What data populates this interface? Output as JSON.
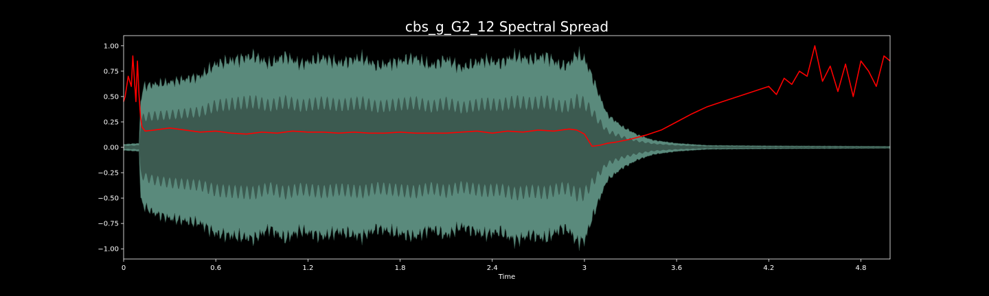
{
  "chart_data": {
    "type": "line",
    "title": "cbs_g_G2_12 Spectral Spread",
    "xlabel": "Time",
    "ylabel": "",
    "xlim": [
      0,
      4.99
    ],
    "ylim": [
      -1.1,
      1.1
    ],
    "x_ticks": [
      0,
      0.6,
      1.2,
      1.8,
      2.4,
      3.0,
      3.6,
      4.2,
      4.8
    ],
    "x_tick_labels": [
      "0",
      "0.6",
      "1.2",
      "1.8",
      "2.4",
      "3",
      "3.6",
      "4.2",
      "4.8"
    ],
    "y_ticks": [
      1.0,
      0.75,
      0.5,
      0.25,
      0.0,
      -0.25,
      -0.5,
      -0.75,
      -1.0
    ],
    "y_tick_labels": [
      "1.00",
      "0.75",
      "0.50",
      "0.25",
      "0.00",
      "−0.25",
      "−0.50",
      "−0.75",
      "−1.00"
    ],
    "grid": false,
    "background": "#000000",
    "colors": {
      "waveform_fill": "#3c5a50",
      "waveform_peak": "#5a8a7c",
      "waveform_edge": "#2e4a40",
      "spread_line": "#ff0000",
      "axes_text": "#ffffff"
    },
    "series": [
      {
        "kind": "waveform-envelope",
        "x": [
          0,
          0.1,
          0.11,
          0.13,
          0.2,
          0.3,
          0.5,
          0.6,
          0.75,
          0.85,
          0.95,
          1.05,
          1.15,
          1.3,
          1.4,
          1.55,
          1.65,
          1.8,
          1.9,
          2.0,
          2.1,
          2.2,
          2.35,
          2.45,
          2.55,
          2.65,
          2.75,
          2.85,
          2.9,
          2.95,
          3.0,
          3.05,
          3.1,
          3.15,
          3.25,
          3.35,
          3.45,
          3.6,
          3.8,
          4.2,
          4.99
        ],
        "upper": [
          0.03,
          0.04,
          0.45,
          0.6,
          0.62,
          0.64,
          0.7,
          0.82,
          0.87,
          0.9,
          0.82,
          0.9,
          0.82,
          0.88,
          0.83,
          0.88,
          0.8,
          0.85,
          0.88,
          0.8,
          0.87,
          0.78,
          0.86,
          0.83,
          0.9,
          0.86,
          0.9,
          0.8,
          0.82,
          0.92,
          0.87,
          0.7,
          0.5,
          0.32,
          0.2,
          0.12,
          0.07,
          0.04,
          0.02,
          0.015,
          0.01
        ],
        "lower": [
          -0.03,
          -0.04,
          -0.5,
          -0.58,
          -0.65,
          -0.7,
          -0.75,
          -0.85,
          -0.88,
          -0.9,
          -0.8,
          -0.9,
          -0.82,
          -0.88,
          -0.83,
          -0.88,
          -0.8,
          -0.85,
          -0.88,
          -0.8,
          -0.87,
          -0.78,
          -0.86,
          -0.83,
          -0.92,
          -0.86,
          -0.9,
          -0.8,
          -0.82,
          -0.93,
          -0.92,
          -0.7,
          -0.5,
          -0.32,
          -0.2,
          -0.12,
          -0.07,
          -0.04,
          -0.02,
          -0.015,
          -0.01
        ]
      },
      {
        "kind": "line",
        "x": [
          0,
          0.01,
          0.03,
          0.05,
          0.06,
          0.08,
          0.09,
          0.1,
          0.11,
          0.12,
          0.14,
          0.2,
          0.3,
          0.4,
          0.5,
          0.6,
          0.7,
          0.8,
          0.9,
          1.0,
          1.1,
          1.2,
          1.3,
          1.4,
          1.5,
          1.6,
          1.7,
          1.8,
          1.9,
          2.0,
          2.1,
          2.2,
          2.3,
          2.4,
          2.5,
          2.6,
          2.7,
          2.8,
          2.9,
          2.95,
          3.0,
          3.05,
          3.1,
          3.15,
          3.2,
          3.3,
          3.4,
          3.5,
          3.6,
          3.7,
          3.8,
          3.9,
          4.0,
          4.1,
          4.2,
          4.25,
          4.3,
          4.35,
          4.4,
          4.45,
          4.5,
          4.55,
          4.6,
          4.65,
          4.7,
          4.75,
          4.8,
          4.85,
          4.9,
          4.95,
          4.99
        ],
        "y": [
          0.45,
          0.5,
          0.7,
          0.6,
          0.9,
          0.45,
          0.85,
          0.52,
          0.3,
          0.2,
          0.16,
          0.17,
          0.19,
          0.17,
          0.15,
          0.16,
          0.14,
          0.13,
          0.15,
          0.14,
          0.16,
          0.15,
          0.15,
          0.14,
          0.15,
          0.14,
          0.14,
          0.15,
          0.14,
          0.14,
          0.14,
          0.15,
          0.16,
          0.14,
          0.16,
          0.15,
          0.17,
          0.16,
          0.18,
          0.17,
          0.13,
          0.01,
          0.02,
          0.04,
          0.05,
          0.08,
          0.12,
          0.17,
          0.25,
          0.33,
          0.4,
          0.45,
          0.5,
          0.55,
          0.6,
          0.52,
          0.68,
          0.62,
          0.75,
          0.7,
          1.0,
          0.65,
          0.8,
          0.55,
          0.82,
          0.5,
          0.85,
          0.75,
          0.6,
          0.9,
          0.85
        ]
      }
    ]
  }
}
